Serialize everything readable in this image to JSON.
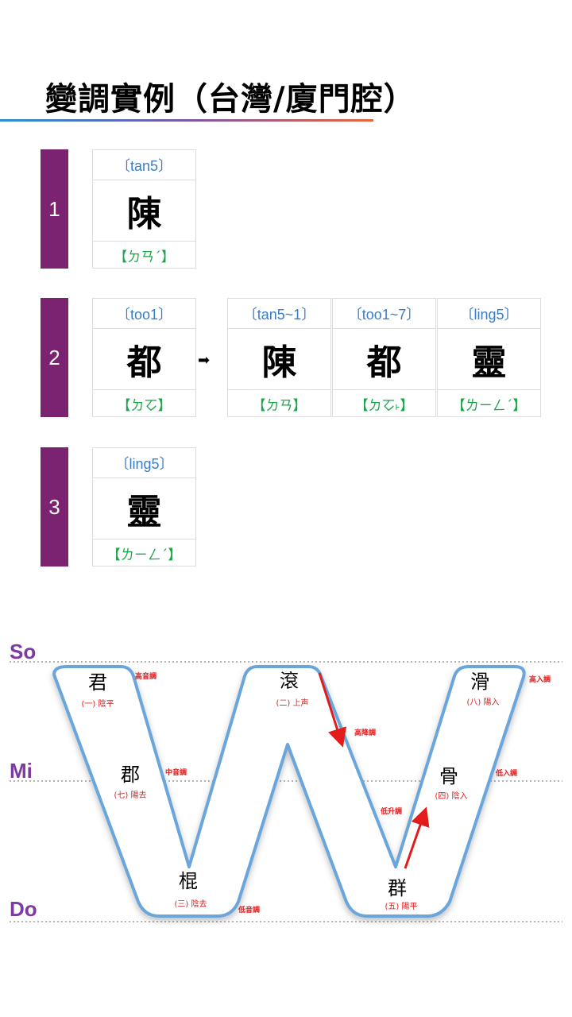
{
  "title": "變調實例（台灣/廈門腔）",
  "rows": [
    {
      "num": "1",
      "source": {
        "rom": "〔tan5〕",
        "han": "陳",
        "zhu": "【ㄉㄢˊ】"
      }
    },
    {
      "num": "2",
      "source": {
        "rom": "〔too1〕",
        "han": "都",
        "zhu": "【ㄉㆦ】"
      },
      "arrow": "➡",
      "results": [
        {
          "rom": "〔tan5~1〕",
          "han": "陳",
          "zhu": "【ㄉㄢ】"
        },
        {
          "rom": "〔too1~7〕",
          "han": "都",
          "zhu": "【ㄉㆦ˫】"
        },
        {
          "rom": "〔ling5〕",
          "han": "靈",
          "zhu": "【ㄌㄧㄥˊ】"
        }
      ]
    },
    {
      "num": "3",
      "source": {
        "rom": "〔ling5〕",
        "han": "靈",
        "zhu": "【ㄌㄧㄥˊ】"
      }
    }
  ],
  "diagram": {
    "levels": {
      "so": "So",
      "mi": "Mi",
      "do": "Do"
    },
    "tones": {
      "t1": {
        "char": "君",
        "label": "(一) 陰平",
        "note": "高音調"
      },
      "t7": {
        "char": "郡",
        "label": "(七) 陽去",
        "note": "中音調"
      },
      "t3": {
        "char": "棍",
        "label": "(三) 陰去",
        "note": "低音調"
      },
      "t2": {
        "char": "滾",
        "label": "(二) 上声",
        "note": "高降調"
      },
      "t5": {
        "char": "群",
        "label": "(五) 陽平",
        "note": "低升調"
      },
      "t4": {
        "char": "骨",
        "label": "(四) 陰入",
        "note": "低入調"
      },
      "t8": {
        "char": "滑",
        "label": "(八) 陽入",
        "note": "高入調"
      }
    },
    "colors": {
      "outline": "#6aa6dc",
      "arrow": "#e21b1b",
      "level": "#7d3aa0"
    }
  }
}
